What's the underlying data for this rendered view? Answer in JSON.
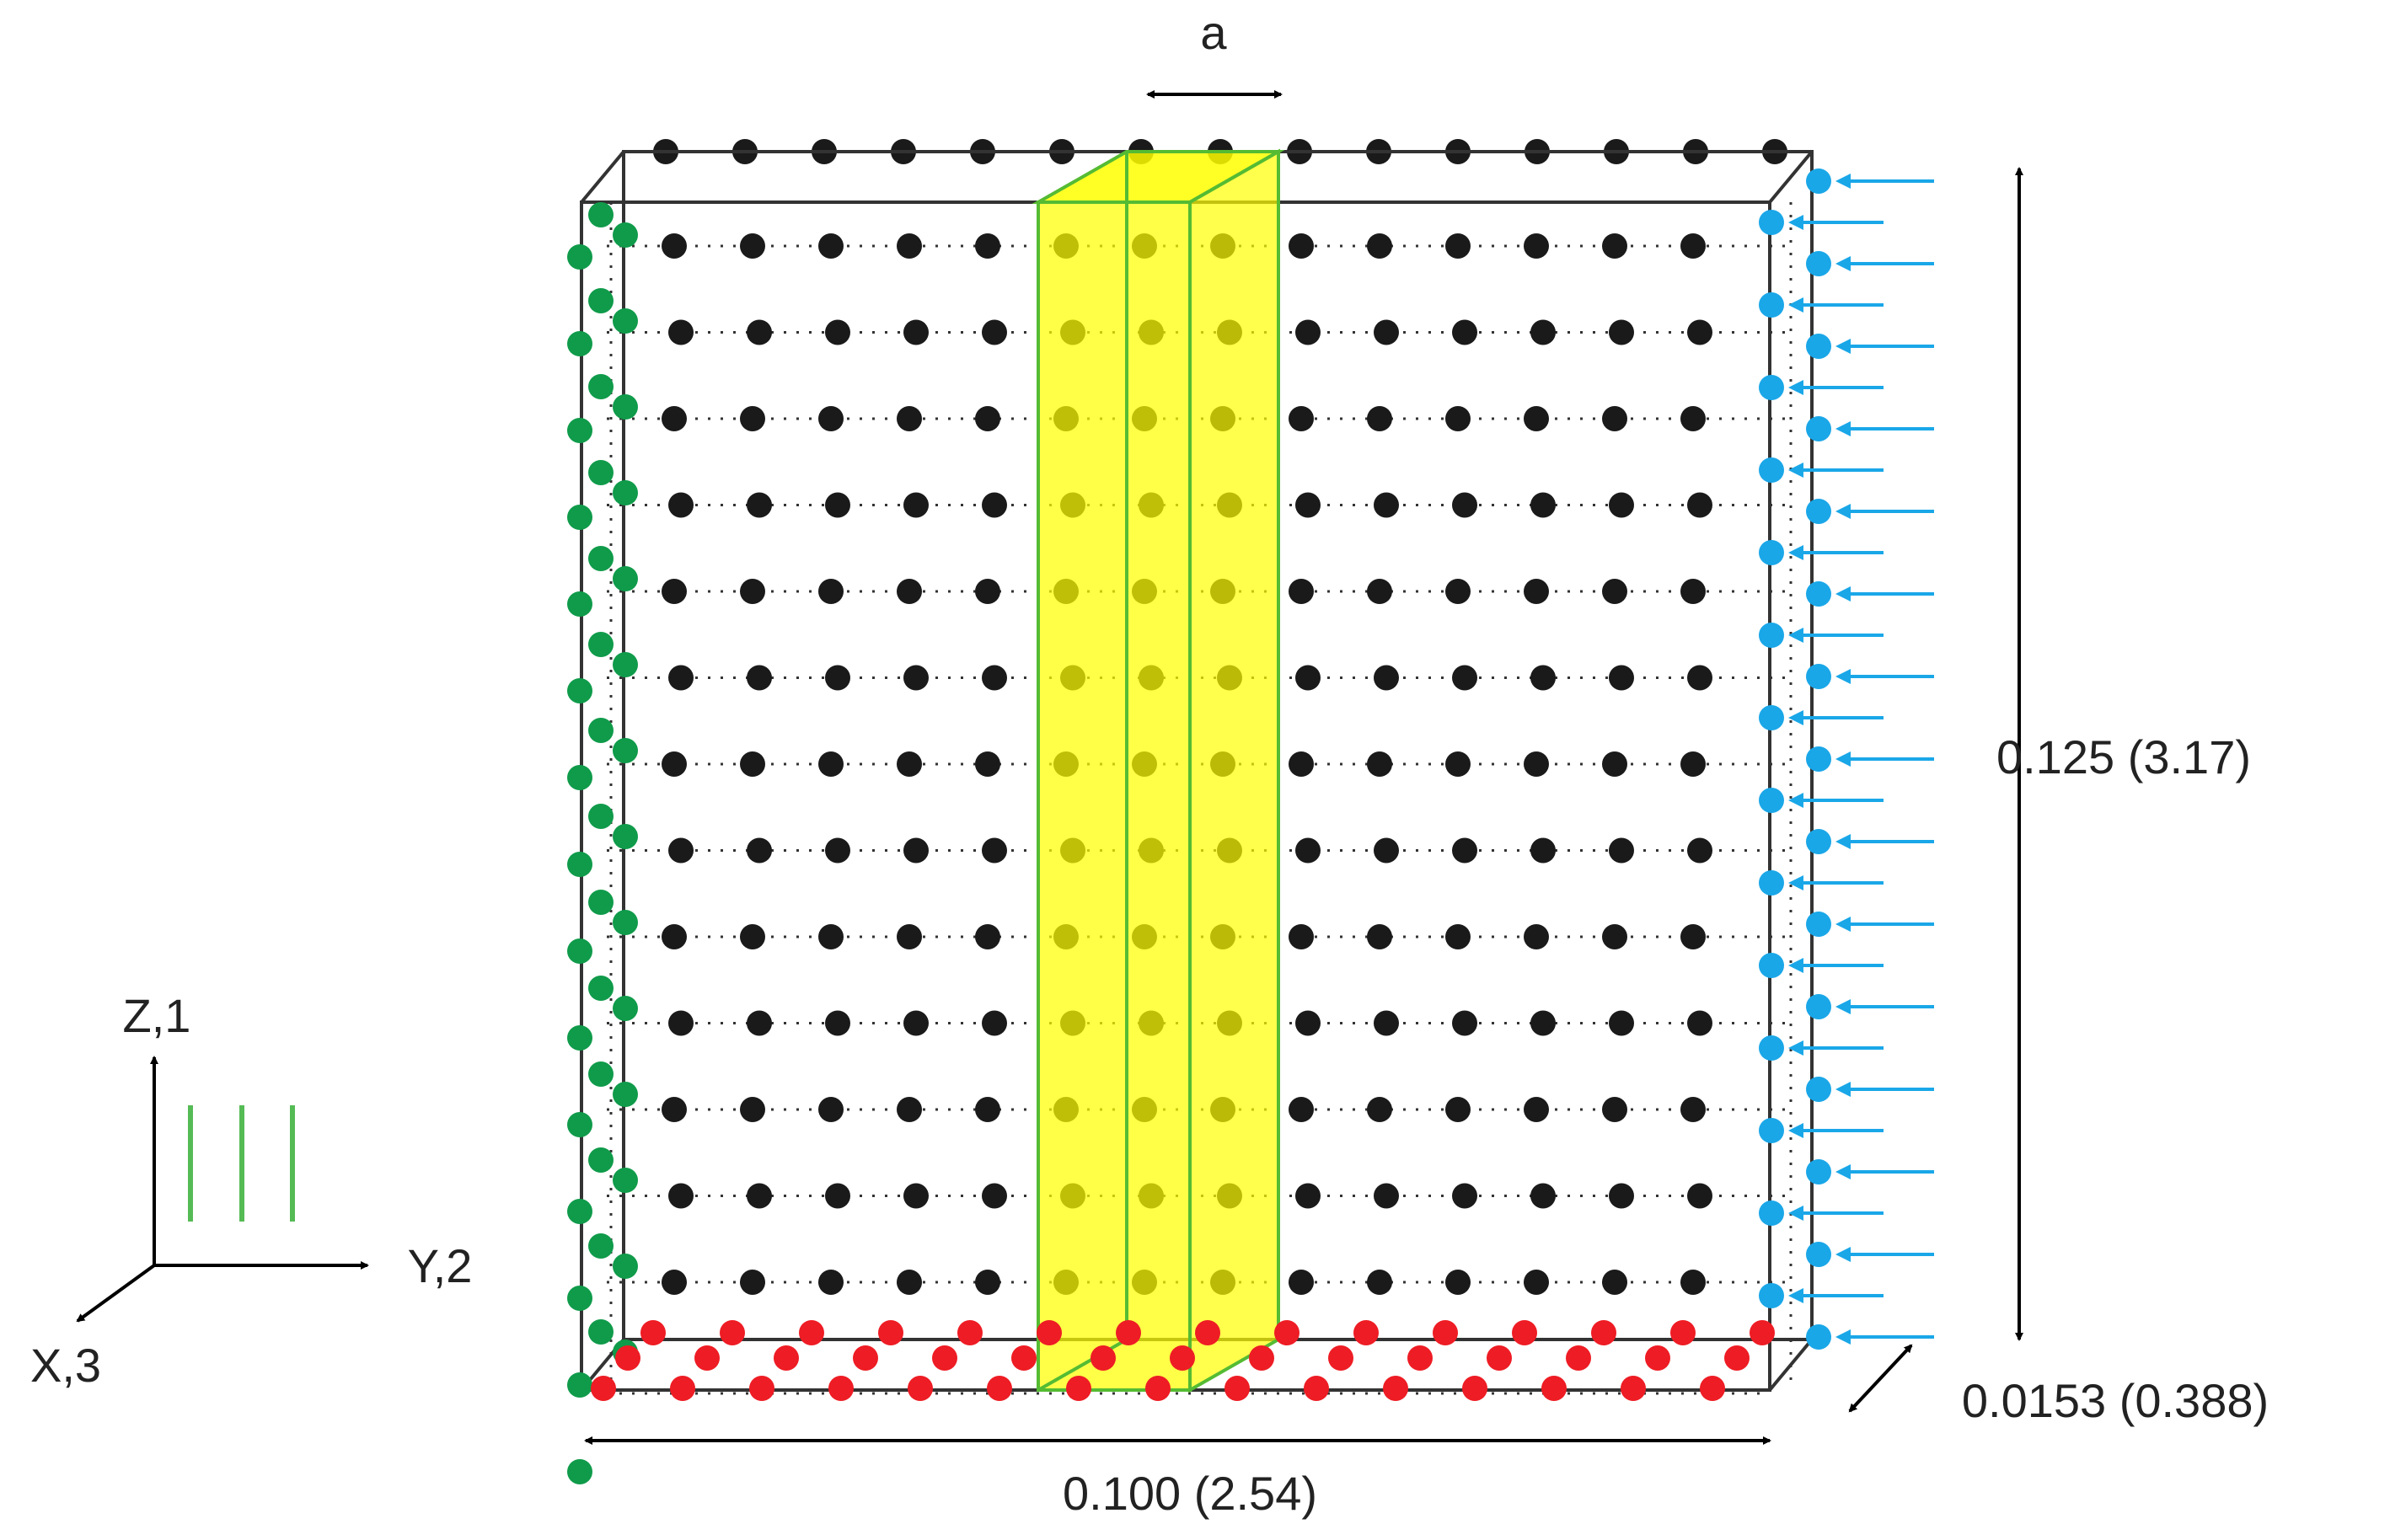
{
  "labels": {
    "a": "a",
    "height_dim": "0.125 (3.17)",
    "width_dim": "0.100 (2.54)",
    "depth_dim": "0.0153 (0.388)",
    "z_axis": "Z,1",
    "y_axis": "Y,2",
    "x_axis": "X,3"
  },
  "colors": {
    "interior_nodes": "#1a1a1a",
    "left_face_nodes": "#0f9b4a",
    "bottom_face_nodes": "#ee1c24",
    "right_face_nodes": "#1aa7e8",
    "load_arrows": "#1aa7e8",
    "highlight_column": "#ffff00",
    "highlight_edge": "#55bb33",
    "box_edges": "#333333",
    "fiber_lines": "#55bb55"
  }
}
